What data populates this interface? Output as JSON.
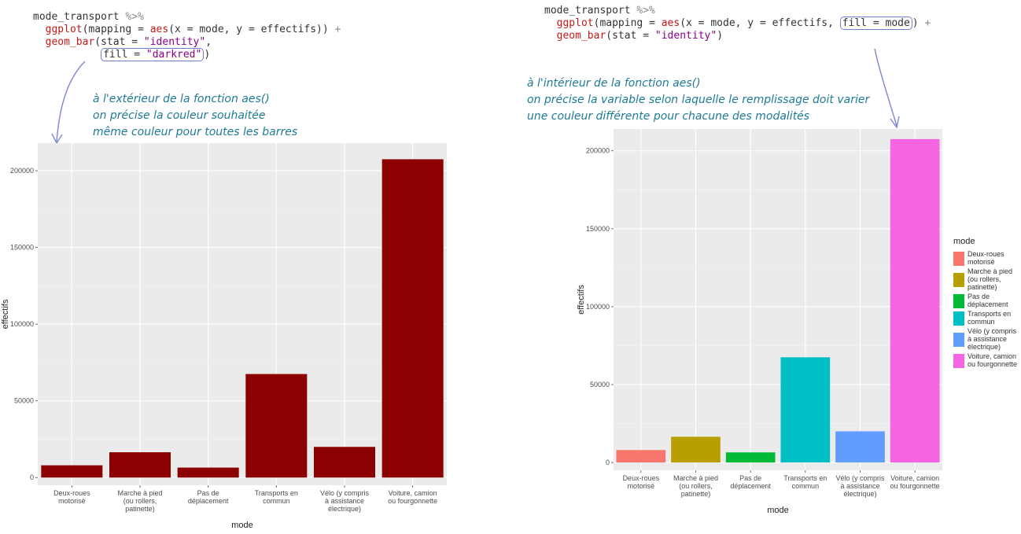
{
  "left": {
    "code": {
      "line1_obj": "mode_transport",
      "line1_pipe": "%>%",
      "line2_fn": "ggplot",
      "line2_rest": "(mapping = ",
      "line2_aes": "aes",
      "line2_args": "(x = mode, y = effectifs)) ",
      "line2_plus": "+",
      "line3_fn": "geom_bar",
      "line3_rest": "(stat = ",
      "line3_str": "\"identity\"",
      "line3_comma": ",",
      "line4_fill": "fill = ",
      "line4_str": "\"darkred\"",
      "line4_close": ")"
    },
    "annotation": [
      "à l'extérieur de la fonction aes()",
      "on précise la couleur souhaitée",
      "même couleur pour toutes les barres"
    ]
  },
  "right": {
    "code": {
      "line1_obj": "mode_transport",
      "line1_pipe": "%>%",
      "line2_fn": "ggplot",
      "line2_rest": "(mapping = ",
      "line2_aes": "aes",
      "line2_args": "(x = mode, y = effectifs, ",
      "line2_fill": "fill = mode",
      "line2_close": ") ",
      "line2_plus": "+",
      "line3_fn": "geom_bar",
      "line3_rest": "(stat = ",
      "line3_str": "\"identity\"",
      "line3_close": ")"
    },
    "annotation": [
      "à l'intérieur de la fonction aes()",
      "on précise la variable selon laquelle le remplissage doit varier",
      "une couleur différente pour chacune des modalités"
    ]
  },
  "chart_data": [
    {
      "type": "bar",
      "categories": [
        [
          "Deux-roues",
          "motorisé"
        ],
        [
          "Marche à pied",
          "(ou rollers,",
          "patinette)"
        ],
        [
          "Pas de",
          "déplacement"
        ],
        [
          "Transports en",
          "commun"
        ],
        [
          "Vélo (y compris",
          "à assistance",
          "électrique)"
        ],
        [
          "Voiture, camion",
          "ou fourgonnette"
        ]
      ],
      "values": [
        8000,
        16500,
        6500,
        67500,
        20000,
        207500
      ],
      "xlabel": "mode",
      "ylabel": "effectifs",
      "ylim": [
        -5000,
        218000
      ],
      "yticks": [
        0,
        50000,
        100000,
        150000,
        200000
      ],
      "ytick_labels": [
        "0",
        "50000",
        "100000",
        "150000",
        "200000"
      ],
      "grid": true,
      "bar_color": "#8b0000",
      "panel_background": "#ebebeb",
      "legend": null
    },
    {
      "type": "bar",
      "categories": [
        [
          "Deux-roues",
          "motorisé"
        ],
        [
          "Marche à pied",
          "(ou rollers,",
          "patinette)"
        ],
        [
          "Pas de",
          "déplacement"
        ],
        [
          "Transports en",
          "commun"
        ],
        [
          "Vélo (y compris",
          "à assistance",
          "électrique)"
        ],
        [
          "Voiture, camion",
          "ou fourgonnette"
        ]
      ],
      "values": [
        8000,
        16500,
        6500,
        67500,
        20000,
        207500
      ],
      "xlabel": "mode",
      "ylabel": "effectifs",
      "ylim": [
        -5000,
        214000
      ],
      "yticks": [
        0,
        50000,
        100000,
        150000,
        200000
      ],
      "ytick_labels": [
        "0",
        "50000",
        "100000",
        "150000",
        "200000"
      ],
      "grid": true,
      "colors": [
        "#f8766d",
        "#b79f00",
        "#00ba38",
        "#00bfc4",
        "#619cff",
        "#f564e3"
      ],
      "panel_background": "#ebebeb",
      "legend": {
        "title": "mode",
        "placement": "right",
        "entries": [
          [
            "Deux-roues",
            "motorisé"
          ],
          [
            "Marche à pied",
            "(ou rollers,",
            "patinette)"
          ],
          [
            "Pas de",
            "déplacement"
          ],
          [
            "Transports en",
            "commun"
          ],
          [
            "Vélo (y compris",
            "à assistance",
            "électrique)"
          ],
          [
            "Voiture, camion",
            "ou fourgonnette"
          ]
        ]
      }
    }
  ]
}
